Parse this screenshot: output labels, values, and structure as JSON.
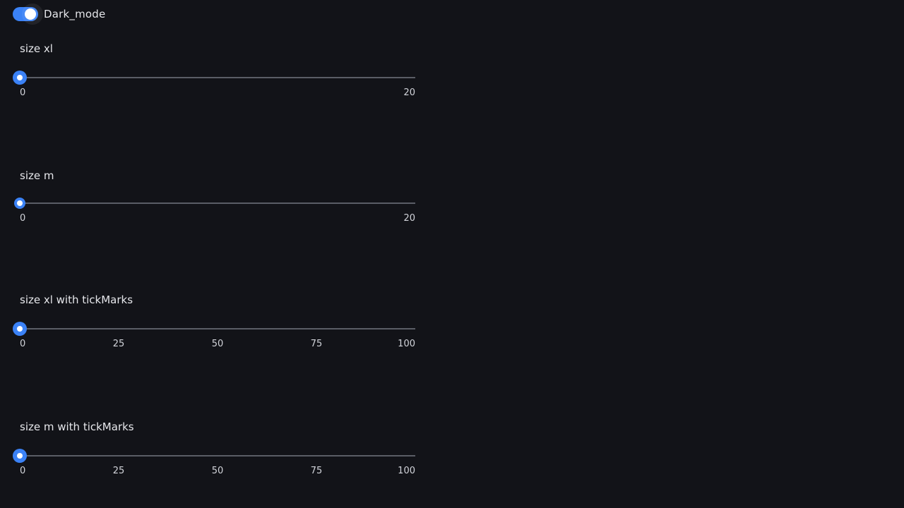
{
  "toggle": {
    "label": "Dark_mode",
    "checked": true
  },
  "sliders": [
    {
      "label": "size xl",
      "size": "xl",
      "value": 0,
      "min": 0,
      "max": 20,
      "ticks": [
        "0",
        "20"
      ]
    },
    {
      "label": "size m",
      "size": "m",
      "value": 0,
      "min": 0,
      "max": 20,
      "ticks": [
        "0",
        "20"
      ]
    },
    {
      "label": "size xl with tickMarks",
      "size": "xl",
      "value": 0,
      "min": 0,
      "max": 100,
      "ticks": [
        "0",
        "25",
        "50",
        "75",
        "100"
      ]
    },
    {
      "label": "size m with tickMarks",
      "size": "m",
      "value": 0,
      "min": 0,
      "max": 100,
      "ticks": [
        "0",
        "25",
        "50",
        "75",
        "100"
      ]
    }
  ],
  "colors": {
    "background": "#121318",
    "accent": "#3b82f6",
    "track": "#5a5d66",
    "text": "#e6e7eb"
  }
}
